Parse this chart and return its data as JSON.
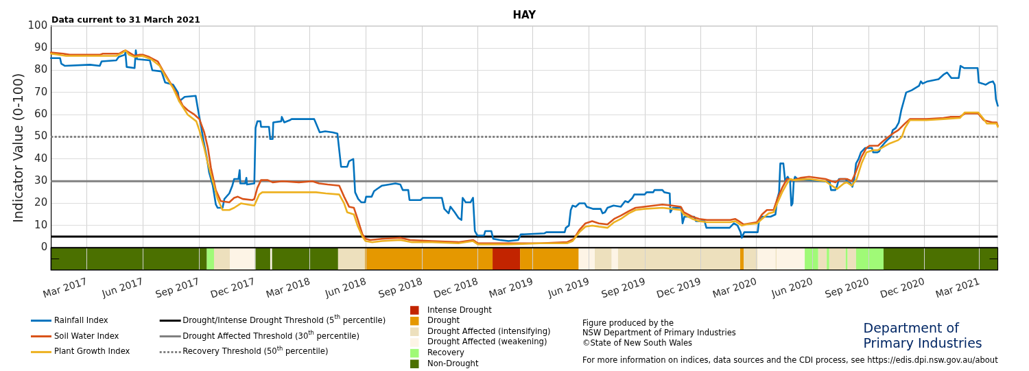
{
  "chart_data": {
    "type": "line",
    "title": "HAY",
    "ylabel": "Indicator Value (0-100)",
    "annotations": [
      "Data current to 31 March 2021",
      "Figure produced by the",
      "NSW Department of Primary Industries",
      "©State of New South Wales",
      "Department of Primary Industries",
      "For more information on indices, data sources and the CDI process, see https://edis.dpi.nsw.gov.au/about"
    ],
    "xlim": [
      "2017-01-01",
      "2021-03-31"
    ],
    "xticks": [
      {
        "value": "2017-03-01",
        "label": "Mar 2017"
      },
      {
        "value": "2017-06-01",
        "label": "Jun 2017"
      },
      {
        "value": "2017-09-01",
        "label": "Sep 2017"
      },
      {
        "value": "2017-12-01",
        "label": "Dec 2017"
      },
      {
        "value": "2018-03-01",
        "label": "Mar 2018"
      },
      {
        "value": "2018-06-01",
        "label": "Jun 2018"
      },
      {
        "value": "2018-09-01",
        "label": "Sep 2018"
      },
      {
        "value": "2018-12-01",
        "label": "Dec 2018"
      },
      {
        "value": "2019-03-01",
        "label": "Mar 2019"
      },
      {
        "value": "2019-06-01",
        "label": "Jun 2019"
      },
      {
        "value": "2019-09-01",
        "label": "Sep 2019"
      },
      {
        "value": "2019-12-01",
        "label": "Dec 2019"
      },
      {
        "value": "2020-03-01",
        "label": "Mar 2020"
      },
      {
        "value": "2020-06-01",
        "label": "Jun 2020"
      },
      {
        "value": "2020-09-01",
        "label": "Sep 2020"
      },
      {
        "value": "2020-12-01",
        "label": "Dec 2020"
      },
      {
        "value": "2021-03-01",
        "label": "Mar 2021"
      }
    ],
    "ylim": [
      -10,
      100
    ],
    "yticks": [
      {
        "value": -5,
        "label": null
      },
      0,
      10,
      20,
      30,
      40,
      50,
      60,
      70,
      80,
      90,
      100
    ],
    "grid": true,
    "legend": "bottom",
    "marker": "none",
    "series": [
      {
        "name": "Rainfall Index",
        "color": "#0072bd",
        "x": [
          "2017-01-01",
          "2017-01-16",
          "2017-01-18",
          "2017-01-24",
          "2017-03-06",
          "2017-03-22",
          "2017-03-25",
          "2017-04-18",
          "2017-04-22",
          "2017-05-02",
          "2017-05-03",
          "2017-05-05",
          "2017-05-18",
          "2017-05-20",
          "2017-05-22",
          "2017-06-12",
          "2017-06-16",
          "2017-07-01",
          "2017-07-07",
          "2017-07-20",
          "2017-07-28",
          "2017-07-30",
          "2017-08-08",
          "2017-08-26",
          "2017-08-30",
          "2017-09-03",
          "2017-09-08",
          "2017-09-13",
          "2017-09-17",
          "2017-09-23",
          "2017-09-28",
          "2017-10-01",
          "2017-10-09",
          "2017-10-12",
          "2017-10-20",
          "2017-10-25",
          "2017-10-28",
          "2017-11-04",
          "2017-11-06",
          "2017-11-07",
          "2017-11-15",
          "2017-11-17",
          "2017-11-18",
          "2017-11-30",
          "2017-12-02",
          "2017-12-05",
          "2017-12-10",
          "2017-12-11",
          "2017-12-24",
          "2017-12-26",
          "2017-12-30",
          "2017-12-31",
          "2018-01-13",
          "2018-01-14",
          "2018-01-18",
          "2018-01-27",
          "2018-01-30",
          "2018-03-08",
          "2018-03-11",
          "2018-03-17",
          "2018-03-26",
          "2018-04-07",
          "2018-04-15",
          "2018-04-18",
          "2018-04-21",
          "2018-05-01",
          "2018-05-04",
          "2018-05-11",
          "2018-05-14",
          "2018-05-19",
          "2018-05-24",
          "2018-05-30",
          "2018-06-01",
          "2018-06-10",
          "2018-06-14",
          "2018-06-19",
          "2018-06-27",
          "2018-07-19",
          "2018-07-27",
          "2018-07-31",
          "2018-08-09",
          "2018-08-11",
          "2018-08-29",
          "2018-09-02",
          "2018-10-03",
          "2018-10-07",
          "2018-10-14",
          "2018-10-17",
          "2018-10-24",
          "2018-10-30",
          "2018-11-04",
          "2018-11-06",
          "2018-11-11",
          "2018-11-19",
          "2018-11-23",
          "2018-11-26",
          "2018-11-30",
          "2018-12-11",
          "2018-12-13",
          "2018-12-23",
          "2018-12-26",
          "2019-01-06",
          "2019-01-20",
          "2019-02-05",
          "2019-02-09",
          "2019-03-20",
          "2019-03-23",
          "2019-04-22",
          "2019-04-24",
          "2019-04-29",
          "2019-05-02",
          "2019-05-05",
          "2019-05-10",
          "2019-05-16",
          "2019-05-25",
          "2019-05-28",
          "2019-06-08",
          "2019-06-20",
          "2019-06-23",
          "2019-06-27",
          "2019-07-01",
          "2019-07-11",
          "2019-07-23",
          "2019-07-30",
          "2019-08-04",
          "2019-08-11",
          "2019-08-14",
          "2019-08-31",
          "2019-09-03",
          "2019-09-14",
          "2019-09-16",
          "2019-09-29",
          "2019-10-02",
          "2019-10-11",
          "2019-10-12",
          "2019-10-16",
          "2019-10-30",
          "2019-11-01",
          "2019-11-04",
          "2019-11-20",
          "2019-11-23",
          "2019-12-07",
          "2019-12-10",
          "2020-01-17",
          "2020-01-24",
          "2020-01-30",
          "2020-02-04",
          "2020-02-06",
          "2020-02-10",
          "2020-03-03",
          "2020-03-05",
          "2020-03-09",
          "2020-03-24",
          "2020-04-01",
          "2020-04-04",
          "2020-04-07",
          "2020-04-09",
          "2020-04-14",
          "2020-04-17",
          "2020-04-21",
          "2020-04-25",
          "2020-04-27",
          "2020-04-29",
          "2020-05-01",
          "2020-05-03",
          "2020-05-07",
          "2020-06-19",
          "2020-06-29",
          "2020-07-01",
          "2020-07-08",
          "2020-07-11",
          "2020-07-14",
          "2020-07-25",
          "2020-07-28",
          "2020-08-02",
          "2020-08-05",
          "2020-08-08",
          "2020-08-11",
          "2020-08-15",
          "2020-08-19",
          "2020-08-26",
          "2020-09-06",
          "2020-09-08",
          "2020-09-15",
          "2020-09-18",
          "2020-09-20",
          "2020-09-26",
          "2020-10-01",
          "2020-10-07",
          "2020-10-10",
          "2020-10-15",
          "2020-10-20",
          "2020-10-24",
          "2020-10-28",
          "2020-11-01",
          "2020-11-10",
          "2020-11-22",
          "2020-11-25",
          "2020-11-28",
          "2020-12-06",
          "2020-12-24",
          "2021-01-01",
          "2021-01-07",
          "2021-01-14",
          "2021-01-26",
          "2021-01-29",
          "2021-02-04",
          "2021-02-26",
          "2021-02-28",
          "2021-03-06",
          "2021-03-11",
          "2021-03-17",
          "2021-03-23",
          "2021-03-26",
          "2021-03-28",
          "2021-03-31"
        ],
        "values": [
          85.5,
          85.5,
          83,
          82,
          82.5,
          82,
          84,
          84.5,
          86,
          87,
          88,
          81.5,
          81,
          89,
          85,
          84.5,
          80,
          79.5,
          74.5,
          73.5,
          70,
          66,
          68,
          68.5,
          62,
          56,
          48,
          41,
          34,
          28,
          19.5,
          18,
          18,
          22,
          24.5,
          28,
          31,
          31,
          35,
          29,
          29,
          31.5,
          28.5,
          29,
          54,
          57,
          57,
          54.5,
          54.5,
          49,
          49,
          56.5,
          57,
          59,
          56.5,
          57.5,
          58,
          58,
          56,
          52,
          52.5,
          52,
          51.5,
          44,
          36.5,
          36.5,
          39,
          40,
          25,
          22,
          20.5,
          20.5,
          23,
          23,
          25.5,
          26.5,
          28,
          29,
          28.5,
          26,
          26,
          21.5,
          21.5,
          22.5,
          22.5,
          17.5,
          15.5,
          18.5,
          16,
          13.5,
          12.5,
          22.5,
          20.5,
          20.5,
          22.5,
          7.5,
          5.5,
          5.5,
          7.5,
          7.5,
          4,
          3.5,
          3,
          3.5,
          6,
          6.5,
          7,
          7,
          9,
          10,
          17,
          19,
          18.5,
          20,
          20,
          18.5,
          17.5,
          17.5,
          15.5,
          16,
          18,
          19,
          18.5,
          21,
          20.5,
          22.5,
          24,
          24,
          25,
          25,
          26,
          26,
          25,
          24.5,
          16,
          18,
          18,
          11,
          14,
          14,
          12,
          12,
          9,
          9,
          11,
          10,
          7,
          4.5,
          7,
          7,
          12,
          14,
          14,
          15,
          22,
          25,
          38,
          38,
          30,
          32,
          30,
          19,
          20,
          30,
          32,
          31,
          30,
          29.5,
          26,
          26,
          28,
          31,
          31,
          29.5,
          29,
          27.5,
          31,
          38,
          40,
          43,
          45,
          45,
          43,
          43,
          43.5,
          45,
          47,
          48.5,
          50,
          53,
          54,
          56.5,
          62,
          66,
          70,
          71,
          73,
          75,
          74,
          75,
          76,
          78,
          79,
          76.5,
          76.5,
          82,
          81,
          81,
          74.5,
          74,
          73.5,
          74.5,
          75,
          73.5,
          67,
          64
        ]
      },
      {
        "name": "Soil Water Index",
        "color": "#d95319",
        "x": [
          "2017-01-01",
          "2017-01-21",
          "2017-02-01",
          "2017-03-22",
          "2017-03-27",
          "2017-04-23",
          "2017-04-29",
          "2017-05-03",
          "2017-05-09",
          "2017-05-18",
          "2017-05-26",
          "2017-06-01",
          "2017-06-11",
          "2017-06-25",
          "2017-07-03",
          "2017-07-14",
          "2017-07-25",
          "2017-08-05",
          "2017-08-13",
          "2017-08-24",
          "2017-09-01",
          "2017-09-09",
          "2017-09-15",
          "2017-09-20",
          "2017-09-28",
          "2017-10-06",
          "2017-10-20",
          "2017-10-28",
          "2017-11-03",
          "2017-11-11",
          "2017-11-27",
          "2017-11-30",
          "2017-12-05",
          "2017-12-11",
          "2017-12-22",
          "2017-12-30",
          "2018-01-15",
          "2018-02-11",
          "2018-03-05",
          "2018-03-16",
          "2018-03-30",
          "2018-04-18",
          "2018-04-26",
          "2018-05-04",
          "2018-05-12",
          "2018-05-18",
          "2018-05-26",
          "2018-05-31",
          "2018-06-08",
          "2018-06-27",
          "2018-07-27",
          "2018-08-12",
          "2018-09-17",
          "2018-10-30",
          "2018-11-23",
          "2018-12-01",
          "2019-01-20",
          "2019-03-13",
          "2019-04-26",
          "2019-05-07",
          "2019-05-16",
          "2019-05-26",
          "2019-06-06",
          "2019-06-17",
          "2019-07-01",
          "2019-07-12",
          "2019-07-23",
          "2019-08-05",
          "2019-08-16",
          "2019-08-30",
          "2019-09-15",
          "2019-09-29",
          "2019-10-15",
          "2019-10-29",
          "2019-11-03",
          "2019-11-17",
          "2019-11-28",
          "2019-12-11",
          "2020-01-18",
          "2020-01-26",
          "2020-02-01",
          "2020-02-09",
          "2020-03-02",
          "2020-03-10",
          "2020-03-18",
          "2020-03-29",
          "2020-04-04",
          "2020-04-12",
          "2020-04-20",
          "2020-05-01",
          "2020-05-12",
          "2020-05-26",
          "2020-06-22",
          "2020-07-02",
          "2020-07-08",
          "2020-07-16",
          "2020-07-27",
          "2020-08-04",
          "2020-08-09",
          "2020-08-20",
          "2020-08-28",
          "2020-09-02",
          "2020-09-16",
          "2020-09-24",
          "2020-10-03",
          "2020-10-13",
          "2020-10-19",
          "2020-10-30",
          "2020-11-07",
          "2020-12-04",
          "2021-01-01",
          "2021-01-12",
          "2021-01-28",
          "2021-02-05",
          "2021-02-27",
          "2021-03-08",
          "2021-03-22",
          "2021-03-29",
          "2021-03-31"
        ],
        "values": [
          88,
          87.5,
          87,
          87,
          87.5,
          87.5,
          88.5,
          89,
          88,
          86.5,
          87,
          87,
          86,
          84,
          80,
          75,
          70,
          64,
          62,
          60,
          58,
          52,
          45,
          36,
          26,
          21,
          20.5,
          22.5,
          23,
          22,
          21.5,
          22,
          27,
          30.5,
          30.5,
          29.5,
          30,
          29.5,
          30,
          29,
          28.5,
          28,
          23,
          18.5,
          18,
          13,
          6,
          4,
          3.5,
          4,
          4.5,
          3.5,
          3,
          2.5,
          3.5,
          2,
          2,
          2,
          2.5,
          4,
          8,
          11,
          12,
          11,
          10.5,
          13,
          14.5,
          16.5,
          18,
          18.5,
          19,
          19.5,
          19,
          18.5,
          16,
          14,
          13,
          12.5,
          12.5,
          13,
          12,
          10.5,
          11.5,
          15,
          17,
          17,
          22,
          27,
          31,
          30.5,
          31.5,
          32,
          31,
          30,
          29.5,
          31,
          31,
          30,
          33,
          41,
          45,
          46,
          46,
          48,
          50,
          52,
          53,
          56,
          58,
          58,
          58.5,
          59,
          59,
          60.5,
          60.5,
          57.5,
          56.5,
          56.5,
          55
        ]
      },
      {
        "name": "Plant Growth Index",
        "color": "#edb120",
        "x": [
          "2017-01-01",
          "2017-01-26",
          "2017-04-18",
          "2017-04-29",
          "2017-05-03",
          "2017-05-09",
          "2017-05-18",
          "2017-05-31",
          "2017-06-14",
          "2017-06-28",
          "2017-07-06",
          "2017-07-20",
          "2017-07-30",
          "2017-08-13",
          "2017-08-27",
          "2017-09-01",
          "2017-09-09",
          "2017-09-15",
          "2017-09-23",
          "2017-10-01",
          "2017-10-09",
          "2017-10-20",
          "2017-10-28",
          "2017-11-08",
          "2017-11-19",
          "2017-11-30",
          "2017-12-08",
          "2017-12-13",
          "2018-01-04",
          "2018-02-11",
          "2018-03-11",
          "2018-03-27",
          "2018-04-18",
          "2018-04-26",
          "2018-05-01",
          "2018-05-12",
          "2018-05-18",
          "2018-05-26",
          "2018-05-31",
          "2018-06-11",
          "2018-06-27",
          "2018-07-27",
          "2018-08-15",
          "2018-09-17",
          "2018-10-30",
          "2018-11-23",
          "2018-12-01",
          "2019-01-20",
          "2019-03-13",
          "2019-04-26",
          "2019-05-05",
          "2019-05-16",
          "2019-05-26",
          "2019-06-06",
          "2019-06-17",
          "2019-07-01",
          "2019-07-12",
          "2019-07-23",
          "2019-08-05",
          "2019-08-16",
          "2019-08-30",
          "2019-09-29",
          "2019-10-15",
          "2019-10-29",
          "2019-11-03",
          "2019-11-17",
          "2019-11-28",
          "2019-12-11",
          "2020-01-18",
          "2020-01-26",
          "2020-02-06",
          "2020-02-14",
          "2020-03-02",
          "2020-03-10",
          "2020-03-21",
          "2020-03-29",
          "2020-04-04",
          "2020-04-12",
          "2020-04-20",
          "2020-04-25",
          "2020-05-01",
          "2020-05-26",
          "2020-06-08",
          "2020-06-22",
          "2020-07-02",
          "2020-07-11",
          "2020-07-22",
          "2020-07-27",
          "2020-08-04",
          "2020-08-12",
          "2020-08-20",
          "2020-08-28",
          "2020-09-08",
          "2020-09-16",
          "2020-09-22",
          "2020-10-05",
          "2020-10-19",
          "2020-10-25",
          "2020-10-30",
          "2020-11-07",
          "2020-12-04",
          "2021-01-01",
          "2021-01-28",
          "2021-02-05",
          "2021-02-27",
          "2021-03-08",
          "2021-03-13",
          "2021-03-29",
          "2021-03-31"
        ],
        "values": [
          87.5,
          86.5,
          86.5,
          88,
          89,
          87,
          86,
          86.5,
          85,
          82,
          78,
          72,
          66,
          60,
          57,
          53,
          45,
          38,
          30,
          22,
          17,
          17,
          18,
          20,
          19.5,
          19,
          24,
          25,
          25,
          25,
          25,
          24.5,
          24,
          20,
          16,
          15,
          10,
          5,
          3,
          2.5,
          3,
          3.5,
          2.5,
          2.5,
          2,
          3,
          1.5,
          1.5,
          2,
          2,
          3,
          7,
          9.5,
          10,
          9.5,
          9,
          11.5,
          13,
          15.5,
          17,
          17.5,
          18,
          17.5,
          17,
          15,
          13,
          12,
          11.5,
          11.5,
          12,
          10,
          10.5,
          11,
          13,
          15.5,
          16,
          20,
          25,
          29,
          31,
          30.5,
          31,
          30.5,
          30,
          28,
          26.5,
          29,
          29.5,
          28,
          31,
          38,
          43,
          44,
          44,
          45,
          47,
          48.5,
          50,
          54,
          57.5,
          57.5,
          58,
          58.5,
          61,
          61,
          58,
          56,
          56,
          54.5
        ]
      }
    ],
    "ref_lines": [
      {
        "axis": "y",
        "value": 5,
        "label": "Drought/Intense Drought Threshold (5$^{th}$ percentile)",
        "color": "#000000",
        "line_style": "solid"
      },
      {
        "axis": "y",
        "value": 30,
        "label": "Drought Affected Threshold (30$^{th}$ percentile)",
        "color": "#808080",
        "line_style": "solid"
      },
      {
        "axis": "y",
        "value": 50,
        "label": "Recovery Threshold (50$^{th}$ percentile)",
        "color": "#808080",
        "line_style": "dotted"
      }
    ],
    "bands": [
      {
        "axis": "x",
        "from": "2018-12-25",
        "to": "2019-02-08",
        "label": "Intense Drought",
        "color": "#c22400"
      },
      {
        "axis": "x",
        "from": "2018-05-30",
        "to": "2018-12-25",
        "label": "Drought",
        "color": "#e59800"
      },
      {
        "axis": "x",
        "from": "2019-02-08",
        "to": "2019-05-15",
        "color": "#e59800"
      },
      {
        "axis": "x",
        "from": "2020-02-03",
        "to": "2020-02-09",
        "color": "#e59800"
      },
      {
        "axis": "x",
        "from": "2017-09-25",
        "to": "2017-10-21",
        "label": "Drought Affected (intensifying)",
        "color": "#ede0bd"
      },
      {
        "axis": "x",
        "from": "2018-04-16",
        "to": "2018-05-30",
        "color": "#ede0bd"
      },
      {
        "axis": "x",
        "from": "2019-06-10",
        "to": "2019-07-08",
        "color": "#ede0bd"
      },
      {
        "axis": "x",
        "from": "2019-07-18",
        "to": "2020-02-03",
        "color": "#ede0bd"
      },
      {
        "axis": "x",
        "from": "2020-02-09",
        "to": "2020-03-03",
        "color": "#ede0bd"
      },
      {
        "axis": "x",
        "from": "2020-04-01",
        "to": "2020-04-03",
        "color": "#ede0bd"
      },
      {
        "axis": "x",
        "from": "2020-06-10",
        "to": "2020-06-24",
        "color": "#ede0bd"
      },
      {
        "axis": "x",
        "from": "2020-06-28",
        "to": "2020-07-25",
        "color": "#ede0bd"
      },
      {
        "axis": "x",
        "from": "2020-07-28",
        "to": "2020-08-11",
        "color": "#ede0bd"
      },
      {
        "axis": "x",
        "from": "2017-10-21",
        "to": "2017-12-02",
        "label": "Drought Affected (weakening)",
        "color": "#fdf4e6"
      },
      {
        "axis": "x",
        "from": "2017-12-26",
        "to": "2017-12-29",
        "color": "#fdf4e6"
      },
      {
        "axis": "x",
        "from": "2019-05-15",
        "to": "2019-06-10",
        "color": "#fdf4e6"
      },
      {
        "axis": "x",
        "from": "2019-07-08",
        "to": "2019-07-18",
        "color": "#fdf4e6"
      },
      {
        "axis": "x",
        "from": "2020-03-03",
        "to": "2020-04-01",
        "color": "#fdf4e6"
      },
      {
        "axis": "x",
        "from": "2020-04-03",
        "to": "2020-05-19",
        "color": "#fdf4e6"
      },
      {
        "axis": "x",
        "from": "2017-09-13",
        "to": "2017-09-25",
        "label": "Recovery",
        "color": "#a0fa77"
      },
      {
        "axis": "x",
        "from": "2020-05-19",
        "to": "2020-06-10",
        "color": "#a0fa77"
      },
      {
        "axis": "x",
        "from": "2020-06-24",
        "to": "2020-06-28",
        "color": "#a0fa77"
      },
      {
        "axis": "x",
        "from": "2020-07-25",
        "to": "2020-07-28",
        "color": "#a0fa77"
      },
      {
        "axis": "x",
        "from": "2020-08-11",
        "to": "2020-09-25",
        "color": "#a0fa77"
      },
      {
        "axis": "x",
        "from": "2017-01-01",
        "to": "2017-09-13",
        "label": "Non-Drought",
        "color": "#4b7000"
      },
      {
        "axis": "x",
        "from": "2017-12-02",
        "to": "2017-12-26",
        "color": "#4b7000"
      },
      {
        "axis": "x",
        "from": "2017-12-29",
        "to": "2018-04-16",
        "color": "#4b7000"
      },
      {
        "axis": "x",
        "from": "2020-09-25",
        "to": "2021-03-31",
        "color": "#4b7000"
      }
    ]
  }
}
